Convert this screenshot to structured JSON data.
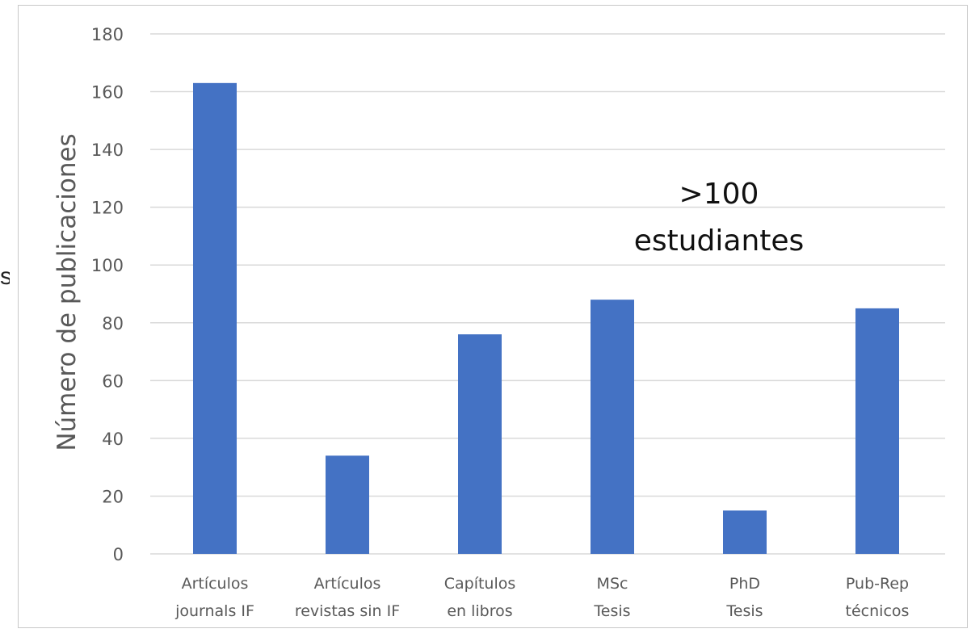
{
  "edge_fragment": "s",
  "chart_data": {
    "type": "bar",
    "categories": [
      [
        "Artículos",
        "journals IF"
      ],
      [
        "Artículos",
        "revistas sin IF"
      ],
      [
        "Capítulos",
        "en libros"
      ],
      [
        "MSc",
        "Tesis"
      ],
      [
        "PhD",
        "Tesis"
      ],
      [
        "Pub-Rep",
        "técnicos"
      ]
    ],
    "values": [
      163,
      34,
      76,
      88,
      15,
      85
    ],
    "ylabel": "Número de publicaciones",
    "xlabel": "",
    "ylim": [
      0,
      180
    ],
    "yticks": [
      0,
      20,
      40,
      60,
      80,
      100,
      120,
      140,
      160,
      180
    ],
    "grid": true,
    "bar_color": "#4472c4",
    "grid_color": "#d9d9d9",
    "annotation": [
      ">100",
      "estudiantes"
    ]
  }
}
